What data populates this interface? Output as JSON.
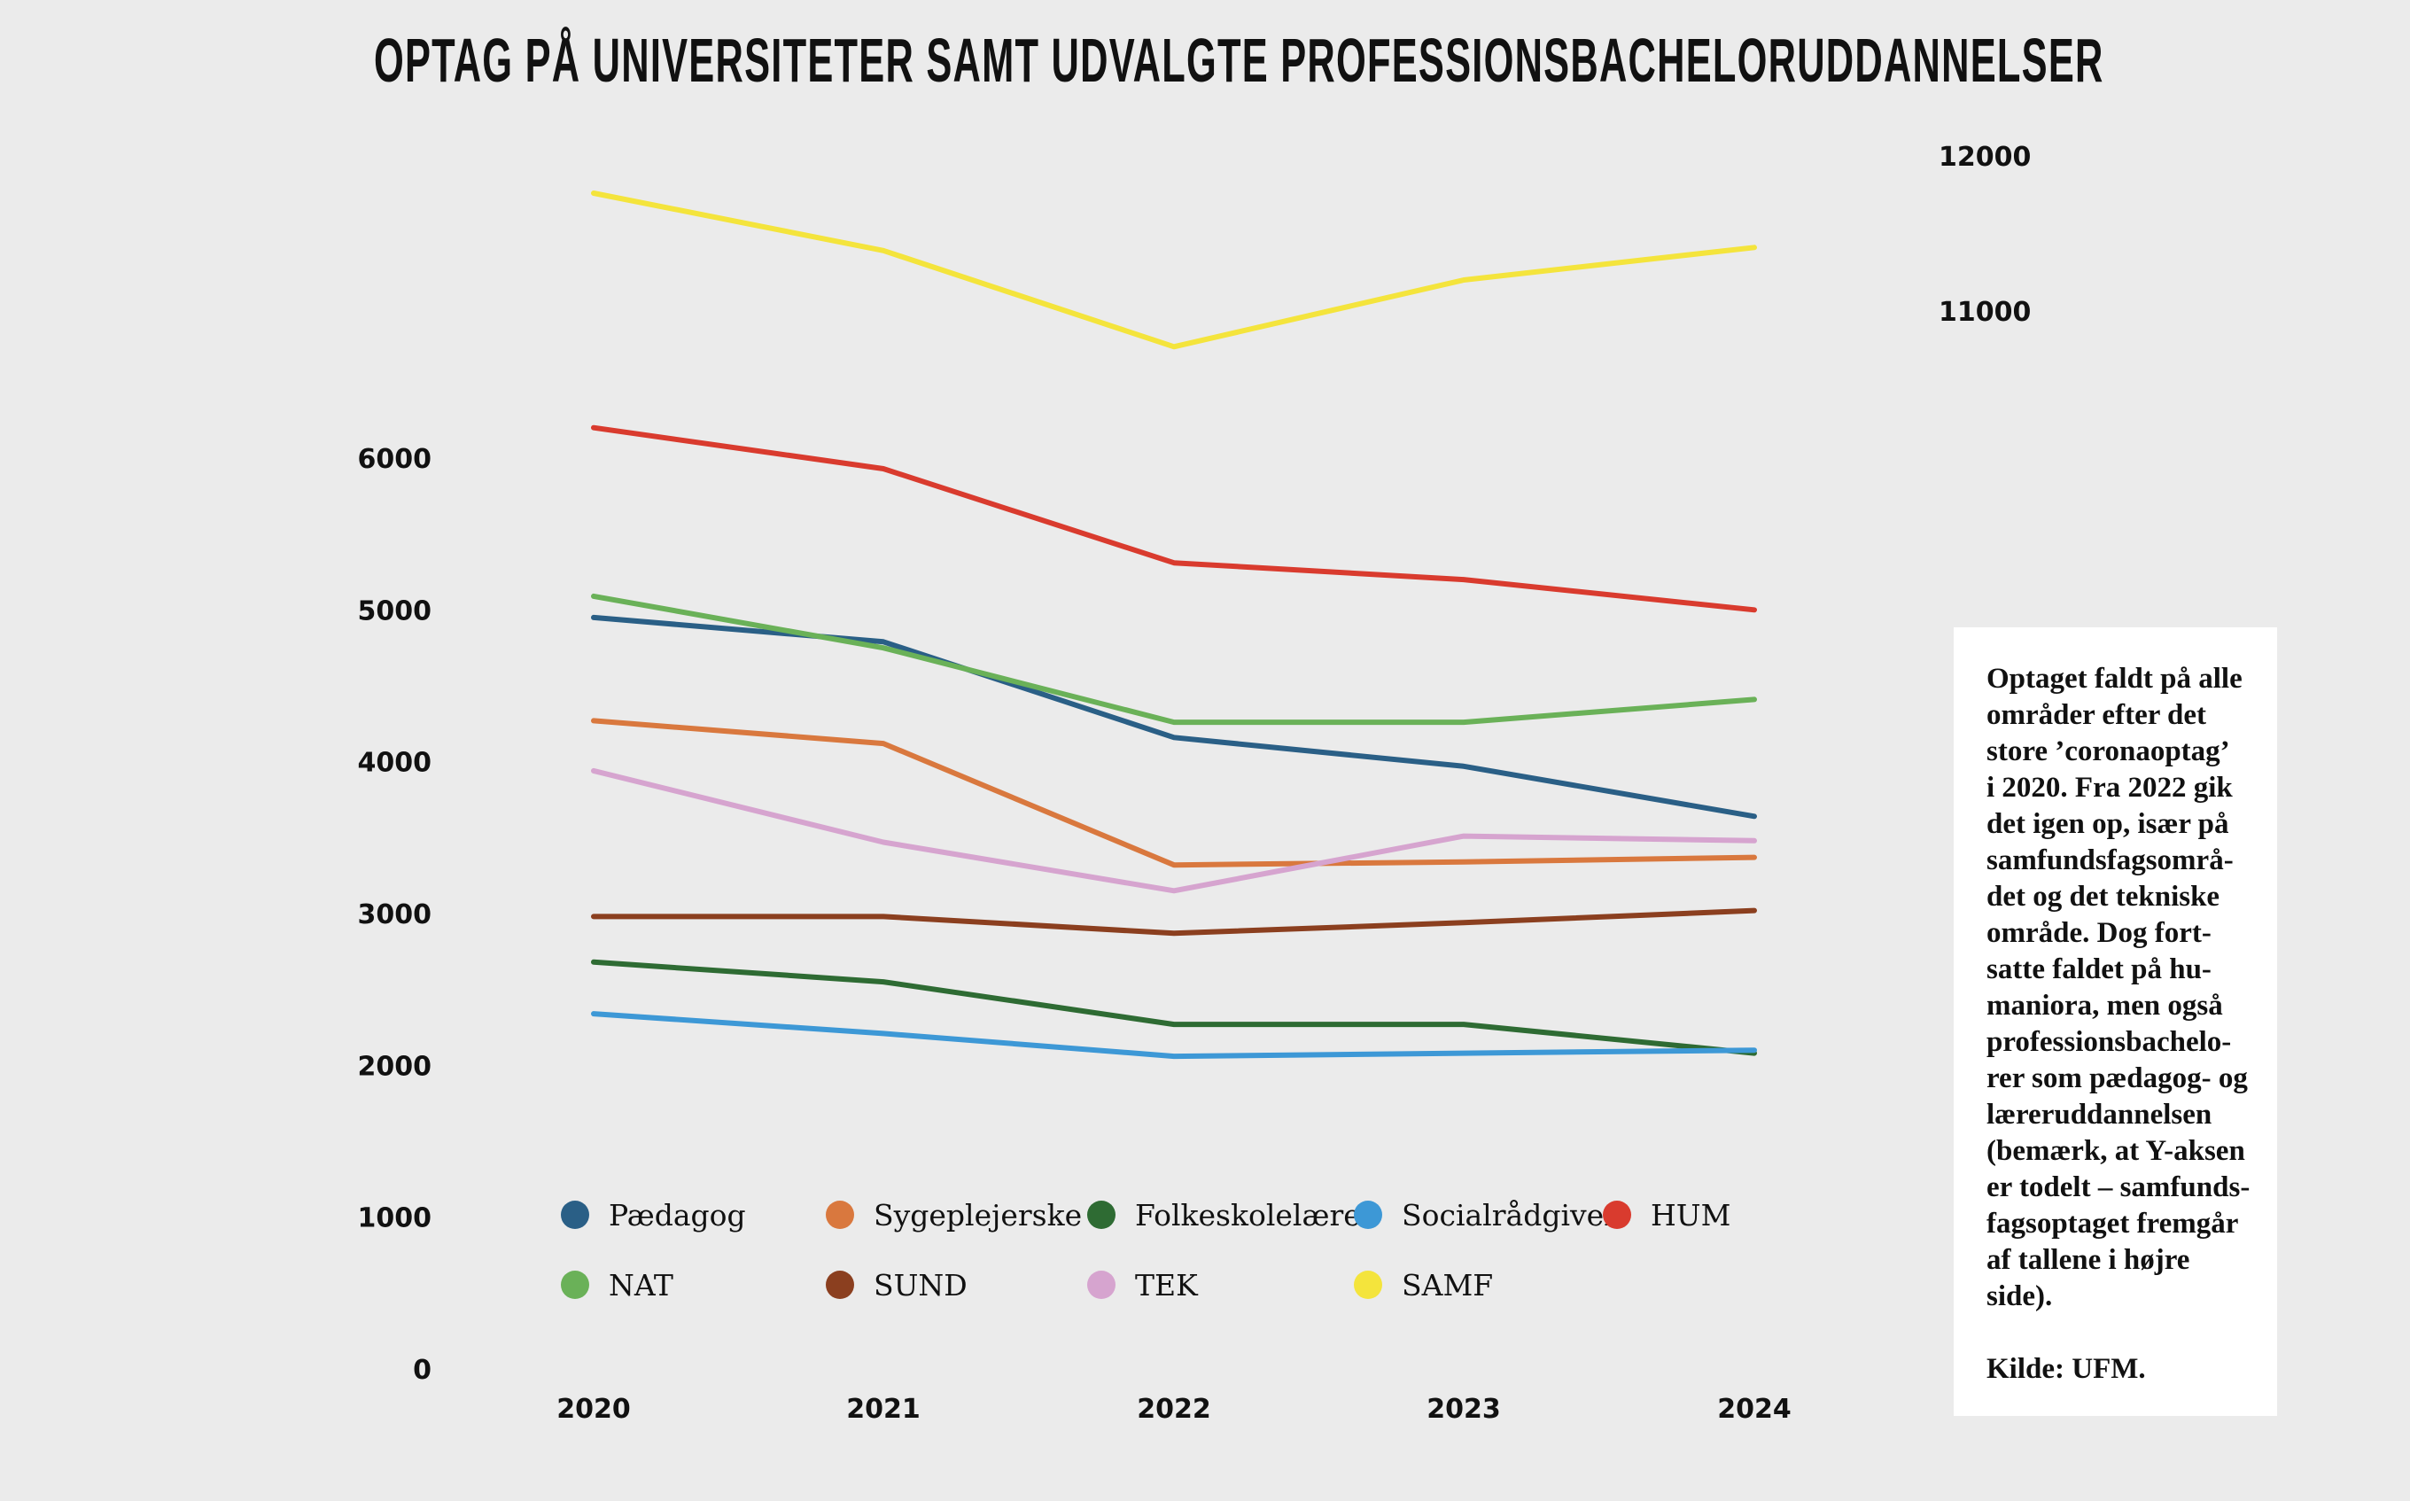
{
  "chart_data": {
    "type": "line",
    "title": "OPTAG PÅ UNIVERSITETER SAMT UDVALGTE PROFESSIONSBACHELORUDDANNELSER",
    "x": [
      "2020",
      "2021",
      "2022",
      "2023",
      "2024"
    ],
    "left_axis": {
      "ticks": [
        "0",
        "1000",
        "2000",
        "3000",
        "4000",
        "5000",
        "6000"
      ],
      "range": [
        0,
        6000
      ]
    },
    "right_axis": {
      "ticks": [
        "11000",
        "12000"
      ],
      "range": [
        11000,
        12000
      ],
      "series": [
        "SAMF"
      ]
    },
    "series": [
      {
        "name": "Pædagog",
        "color": "#2a5f86",
        "axis": "left",
        "values": [
          4950,
          4790,
          4160,
          3970,
          3640
        ]
      },
      {
        "name": "Sygeplejerske",
        "color": "#d9783e",
        "axis": "left",
        "values": [
          4270,
          4120,
          3320,
          3340,
          3370
        ]
      },
      {
        "name": "Folkeskolelærer",
        "color": "#2e6b33",
        "axis": "left",
        "values": [
          2680,
          2550,
          2270,
          2270,
          2080
        ]
      },
      {
        "name": "Socialrådgiver",
        "color": "#3d98d6",
        "axis": "left",
        "values": [
          2340,
          2210,
          2060,
          2080,
          2100
        ]
      },
      {
        "name": "HUM",
        "color": "#d93b2e",
        "axis": "left",
        "values": [
          6200,
          5930,
          5310,
          5200,
          5000
        ]
      },
      {
        "name": "NAT",
        "color": "#6ab158",
        "axis": "left",
        "values": [
          5090,
          4750,
          4260,
          4260,
          4410
        ]
      },
      {
        "name": "SUND",
        "color": "#8b3f1f",
        "axis": "left",
        "values": [
          2980,
          2980,
          2870,
          2940,
          3020
        ]
      },
      {
        "name": "TEK",
        "color": "#d6a4cf",
        "axis": "left",
        "values": [
          3940,
          3470,
          3150,
          3510,
          3480
        ]
      },
      {
        "name": "SAMF",
        "color": "#f4e43c",
        "axis": "right",
        "values": [
          11760,
          11390,
          10770,
          11200,
          11410
        ]
      }
    ]
  },
  "note": {
    "text": "Optaget faldt på alle\nområder efter det\nstore ’coronaoptag’\ni 2020. Fra 2022 gik\ndet igen op, især på\nsamfundsfagsområ-\ndet og det tekniske\nområde. Dog fort-\nsatte faldet på hu-\nmaniora, men også\nprofessionsbachelo-\nrer som pædagog- og\nlæreruddannelsen\n(bemærk, at Y-aksen\ner todelt – samfunds-\nfagsoptaget fremgår\naf tallene i højre\nside).",
    "source": "Kilde: UFM."
  }
}
